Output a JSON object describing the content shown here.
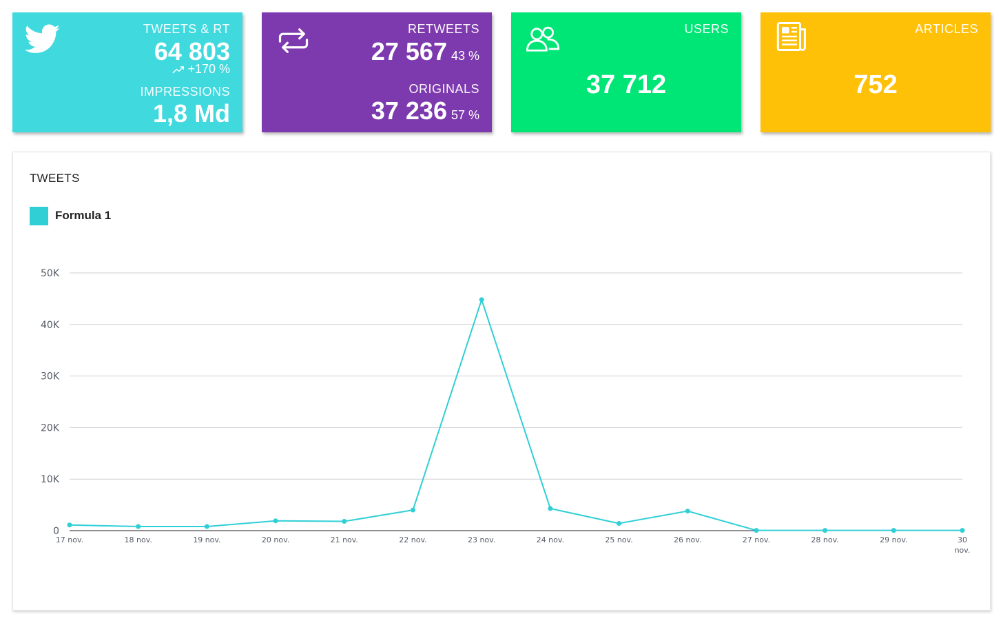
{
  "colors": {
    "tweets_card": "#3fd9de",
    "retweets_card": "#7d3aae",
    "users_card": "#00e676",
    "articles_card": "#ffc107",
    "series_line": "#30cfd6",
    "grid": "#cfcfd6",
    "axis_text": "#555a66"
  },
  "cards": {
    "tweets": {
      "icon": "twitter-bird-icon",
      "label": "TWEETS & RT",
      "value": "64 803",
      "trend_icon": "trend-up-icon",
      "trend": "+170 %",
      "impressions_label": "IMPRESSIONS",
      "impressions_value": "1,8 Md"
    },
    "retweets": {
      "icon": "retweet-icon",
      "label": "RETWEETS",
      "value": "27 567",
      "pct": "43 %",
      "originals_label": "ORIGINALS",
      "originals_value": "37 236",
      "originals_pct": "57 %"
    },
    "users": {
      "icon": "users-icon",
      "label": "USERS",
      "value": "37 712"
    },
    "articles": {
      "icon": "newspaper-icon",
      "label": "ARTICLES",
      "value": "752"
    }
  },
  "chart_data": {
    "type": "line",
    "title": "TWEETS",
    "categories": [
      "17 nov.",
      "18 nov.",
      "19 nov.",
      "20 nov.",
      "21 nov.",
      "22 nov.",
      "23 nov.",
      "24 nov.",
      "25 nov.",
      "26 nov.",
      "27 nov.",
      "28 nov.",
      "29 nov.",
      "30 nov."
    ],
    "series": [
      {
        "name": "Formula 1",
        "values": [
          1100,
          800,
          800,
          1900,
          1800,
          4000,
          44800,
          4300,
          1400,
          3800,
          50,
          50,
          50,
          50
        ]
      }
    ],
    "yticks": [
      0,
      10000,
      20000,
      30000,
      40000,
      50000
    ],
    "ytick_labels": [
      "0",
      "10K",
      "20K",
      "30K",
      "40K",
      "50K"
    ],
    "ylim": [
      0,
      50000
    ],
    "legend": "top-left",
    "grid": true
  }
}
